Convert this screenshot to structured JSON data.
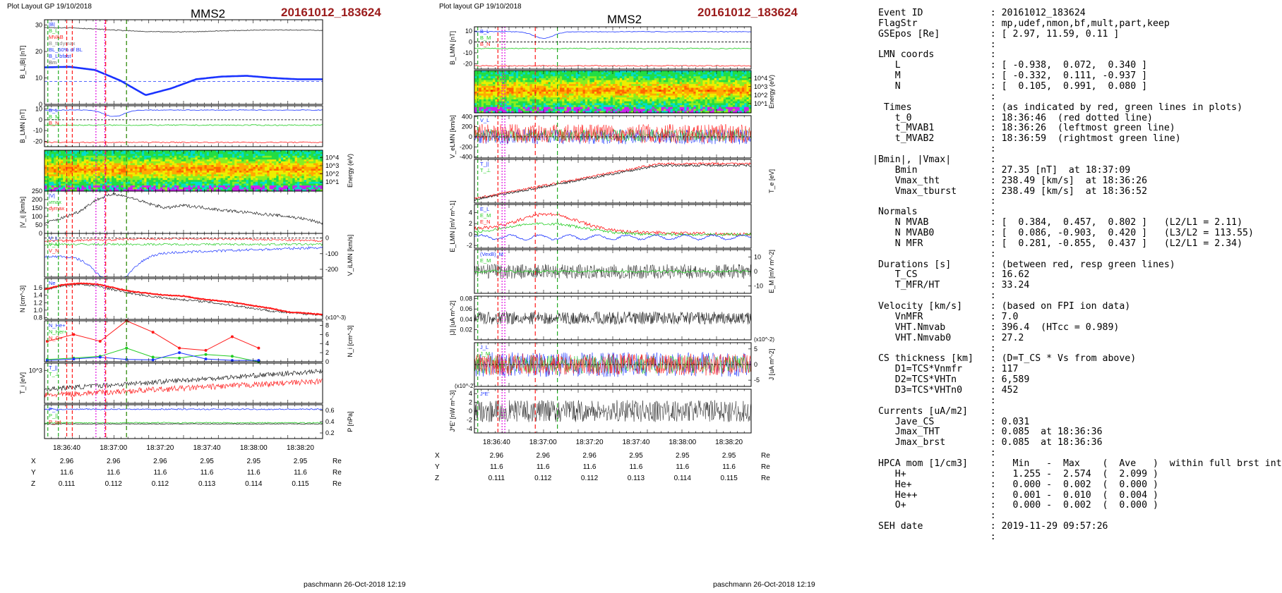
{
  "left": {
    "header": "Plot Layout GP 19/10/2018",
    "title": "MMS2",
    "event": "20161012_183624",
    "footer": "paschmann 26-Oct-2018 12:19",
    "panels": {
      "B": {
        "ylabel": "B_L,|B| [nT]",
        "ticks": [
          "30",
          "20",
          "10",
          "0"
        ],
        "legend": [
          "|B|",
          "B_L",
          "MVAB",
          "B_tt.dymax",
          "BL_50% of BL",
          "B_L bfast",
          "Bm"
        ],
        "series": {
          "Bmag": [
            29,
            29,
            28.5,
            28,
            27.5,
            27.4,
            27.5,
            27.8,
            28,
            28.2,
            28.1,
            28
          ],
          "BL": [
            14,
            14.2,
            13,
            9,
            3.5,
            6,
            9.5,
            10.5,
            10.8,
            10,
            9.5,
            9.5
          ]
        },
        "ylim": [
          0,
          32
        ]
      },
      "BLMN": {
        "ylabel": "B_LMN [nT]",
        "ticks": [
          "10",
          "0",
          "-10",
          "-20"
        ],
        "legend": [
          "B_L",
          "B_M",
          "B_N"
        ],
        "ylim": [
          -25,
          13
        ]
      },
      "spec": {
        "ylabel": "Energy (eV)",
        "ticks": [
          "10^4",
          "10^3",
          "10^2",
          "10^1"
        ]
      },
      "Vi": {
        "ylabel": "|V_i| [km/s]",
        "ticks": [
          "250",
          "200",
          "150",
          "100",
          "50",
          "0"
        ],
        "legend": [
          "|V|",
          "vmax",
          "dymax"
        ],
        "series": [
          60,
          90,
          130,
          200,
          235,
          210,
          175,
          150,
          165,
          155,
          140,
          130,
          120,
          110,
          100,
          85,
          60
        ],
        "ylim": [
          0,
          250
        ]
      },
      "ViLMN": {
        "ylabel": "V_iLMN [km/s]",
        "ticks": [
          "0",
          "-100",
          "-200"
        ],
        "legend": [
          "V_L",
          "V_M",
          "V_N"
        ],
        "ylim": [
          -250,
          30
        ]
      },
      "N": {
        "ylabel": "N [cm^-3]",
        "ticks": [
          "1.6",
          "1.4",
          "1.2",
          "1.0",
          "0.8"
        ],
        "legend": [
          "Ne"
        ],
        "series": {
          "Ne": [
            1.55,
            1.68,
            1.72,
            1.7,
            1.6,
            1.5,
            1.45,
            1.4,
            1.38,
            1.3,
            1.25,
            1.2,
            1.12,
            1.05,
            0.95,
            0.92,
            0.88
          ],
          "Ni": [
            1.55,
            1.65,
            1.7,
            1.65,
            1.55,
            1.45,
            1.38,
            1.32,
            1.28,
            1.24,
            1.18,
            1.12,
            1.05,
            0.98,
            0.93,
            0.9,
            0.87
          ]
        },
        "ylim": [
          0.75,
          1.85
        ]
      },
      "Nions": {
        "ylabel": "N_i [cm^-3]",
        "exp": "(x10^-3)",
        "ticks": [
          "8",
          "6",
          "4",
          "2",
          "0"
        ],
        "legend": [
          "N_He+",
          "N_Her+",
          "N_O+"
        ],
        "x": [
          0,
          1,
          2,
          3,
          4,
          5,
          6,
          7,
          8,
          9
        ],
        "He_pp": [
          4.5,
          6,
          4.5,
          9,
          6.5,
          3,
          2.5,
          5.5,
          3,
          0
        ],
        "He_p": [
          0.5,
          0.8,
          1.2,
          3,
          1,
          0.8,
          1.6,
          1.2,
          0,
          0
        ],
        "O_p": [
          0.3,
          0.6,
          1,
          0.5,
          0.4,
          2,
          0.6,
          0.3,
          0.3,
          0
        ],
        "ylim": [
          0,
          9
        ]
      },
      "Ti": {
        "ylabel": "T_i [eV]",
        "ticks": [
          "10^3"
        ],
        "legend": [
          "T_||",
          "T_⊥"
        ]
      },
      "P": {
        "ylabel": "P [nPa]",
        "ticks": [
          "0.6",
          "0.4",
          "0.2"
        ],
        "legend": [
          "P_⊥",
          "P_||",
          "P_tot"
        ],
        "ylim": [
          0.1,
          0.7
        ]
      }
    },
    "xticks": [
      "18:36:40",
      "18:37:00",
      "18:37:20",
      "18:37:40",
      "18:38:00",
      "18:38:20"
    ],
    "positions": {
      "X": [
        "2.96",
        "2.96",
        "2.96",
        "2.95",
        "2.95",
        "2.95"
      ],
      "Y": [
        "11.6",
        "11.6",
        "11.6",
        "11.6",
        "11.6",
        "11.6"
      ],
      "Z": [
        "0.111",
        "0.112",
        "0.112",
        "0.113",
        "0.114",
        "0.115"
      ],
      "unit": "Re"
    }
  },
  "middle": {
    "header": "Plot layout GP 19/10/2018",
    "title": "MMS2",
    "event": "20161012_183624",
    "footer": "paschmann 26-Oct-2018 12:19",
    "panels": {
      "BLMN": {
        "ylabel": "B_LMN [nT]",
        "ticks": [
          "10",
          "0",
          "-10",
          "-20"
        ],
        "legend": [
          "B_L",
          "B_M",
          "B_N"
        ],
        "ylim": [
          -25,
          14
        ]
      },
      "spec": {
        "ylabel": "Energy (eV)",
        "ticks": [
          "10^4",
          "10^3",
          "10^2",
          "10^1"
        ]
      },
      "Ve": {
        "ylabel": "V_eLMN [km/s]",
        "ticks": [
          "400",
          "200",
          "0",
          "-200",
          "-400"
        ],
        "legend": [
          "V_L"
        ],
        "ylim": [
          -420,
          420
        ]
      },
      "Te": {
        "ylabel": "T_e [eV]",
        "legend": [
          "T_||",
          "T_⊥"
        ]
      },
      "E": {
        "ylabel": "E_LMN [mV m^-1]",
        "ticks": [
          "4",
          "2",
          "0",
          "-2"
        ],
        "legend": [
          "E_L",
          "E_M",
          "E_N"
        ],
        "ylim": [
          -2.5,
          5.5
        ]
      },
      "EM": {
        "ylabel": "E_M [mV m^-2]",
        "ticks": [
          "10",
          "0",
          "-10"
        ],
        "legend": [
          "(VexB)_M",
          "E_M"
        ],
        "ylim": [
          -15,
          15
        ]
      },
      "J": {
        "ylabel": "|J| [uA m^-2]",
        "ticks": [
          "0.08",
          "0.06",
          "0.04",
          "0.02"
        ],
        "ylim": [
          0,
          0.085
        ]
      },
      "JLMN": {
        "ylabel": "J [uA m^-2]",
        "exp": "(x10^-2)",
        "ticks": [
          "5",
          "0",
          "-5"
        ],
        "legend": [
          "J_L",
          "J_M",
          "J_N"
        ],
        "ylim": [
          -7,
          7
        ]
      },
      "JE": {
        "ylabel": "J*E' [nW m^-3]",
        "exp": "(x10^-2)",
        "ticks": [
          "4",
          "2",
          "0",
          "-2",
          "-4"
        ],
        "legend": [
          "J*E'"
        ],
        "ylim": [
          -5,
          5
        ]
      }
    },
    "xticks": [
      "18:36:40",
      "18:37:00",
      "18:37:20",
      "18:37:40",
      "18:38:00",
      "18:38:20"
    ],
    "positions": {
      "X": [
        "2.96",
        "2.96",
        "2.96",
        "2.95",
        "2.95",
        "2.95"
      ],
      "Y": [
        "11.6",
        "11.6",
        "11.6",
        "11.6",
        "11.6",
        "11.6"
      ],
      "Z": [
        "0.111",
        "0.112",
        "0.112",
        "0.113",
        "0.114",
        "0.115"
      ],
      "unit": "Re"
    }
  },
  "info_lines": [
    " Event ID            : 20161012_183624",
    " FlagStr             : mp,udef,nmon,bf,mult,part,keep",
    " GSEpos [Re]         : [ 2.97, 11.59, 0.11 ]",
    "                     :",
    " LMN coords          :",
    "    L                : [ -0.938,  0.072,  0.340 ]",
    "    M                : [ -0.332,  0.111, -0.937 ]",
    "    N                : [  0.105,  0.991,  0.080 ]",
    "                     :",
    "  Times              : (as indicated by red, green lines in plots)",
    "    t_0              : 18:36:46  (red dotted line)",
    "    t_MVAB1          : 18:36:26  (leftmost green line)",
    "    t_MVAB2          : 18:36:59  (rightmost green line)",
    "                     :",
    "|Bmin|, |Vmax|       :",
    "    Bmin             : 27.35 [nT]  at 18:37:09",
    "    Vmax_tht         : 238.49 [km/s]  at 18:36:26",
    "    Vmax_tburst      : 238.49 [km/s]  at 18:36:52",
    "                     :",
    " Normals             :",
    "    N MVAB           : [  0.384,  0.457,  0.802 ]   (L2/L1 = 2.11)",
    "    N MVAB0          : [  0.086, -0.903,  0.420 ]   (L3/L2 = 113.55)",
    "    N MFR            : [  0.281, -0.855,  0.437 ]   (L2/L1 = 2.34)",
    "                     :",
    " Durations [s]       : (between red, resp green lines)",
    "    T_CS             : 16.62",
    "    T_MFR/HT         : 33.24",
    "                     :",
    " Velocity [km/s]     : (based on FPI ion data)",
    "    VnMFR            : 7.0",
    "    VHT.Nmvab        : 396.4  (HTcc = 0.989)",
    "    VHT.Nmvab0       : 27.2",
    "                     :",
    " CS thickness [km]   : (D=T_CS * Vs from above)",
    "    D1=TCS*Vnmfr     : 117",
    "    D2=TCS*VHTn      : 6,589",
    "    D3=TCS*VHTn0     : 452",
    "                     :",
    " Currents [uA/m2]    :",
    "    Jave_CS          : 0.031",
    "    Jmax_THT         : 0.085  at 18:36:36",
    "    Jmax_brst        : 0.085  at 18:36:36",
    "                     :",
    " HPCA mom [1/cm3]    :   Min   -  Max    (  Ave   )  within full brst int",
    "    H+               :   1.255 -  2.574  (  2.099 )",
    "    He+              :   0.000 -  0.002  (  0.000 )",
    "    He++             :   0.001 -  0.010  (  0.004 )",
    "    O+               :   0.000 -  0.002  (  0.000 )",
    "                     :",
    " SEH date            : 2019-11-29 09:57:26",
    "                     :"
  ],
  "colors": {
    "event": "#9b1b1b",
    "L": "#1a33ff",
    "M": "#22cc22",
    "N": "#ff1a1a",
    "red": "#ff1a1a",
    "green": "#22cc22",
    "magenta": "#e010e0"
  },
  "chart_data": [
    {
      "type": "line",
      "title": "MMS2",
      "panel": "B_L,|B|",
      "ylabel": "B_L,|B| [nT]",
      "ylim": [
        0,
        32
      ],
      "series": [
        {
          "name": "|B|",
          "values": [
            29,
            29,
            28.5,
            28,
            27.5,
            27.4,
            27.5,
            27.8,
            28,
            28.2,
            28.1,
            28
          ]
        },
        {
          "name": "B_L",
          "values": [
            14,
            14.2,
            13,
            9,
            3.5,
            6,
            9.5,
            10.5,
            10.8,
            10,
            9.5,
            9.5
          ]
        }
      ]
    },
    {
      "type": "line",
      "title": "MMS2",
      "panel": "|V_i|",
      "ylabel": "|V_i| [km/s]",
      "ylim": [
        0,
        250
      ],
      "values": [
        60,
        90,
        130,
        200,
        235,
        210,
        175,
        150,
        165,
        155,
        140,
        130,
        120,
        110,
        100,
        85,
        60
      ]
    },
    {
      "type": "line",
      "title": "MMS2",
      "panel": "N_i",
      "ylabel": "N_i [cm^-3]",
      "ylim": [
        0,
        9
      ],
      "series": [
        {
          "name": "N_He+",
          "values": [
            0.5,
            0.8,
            1.2,
            3,
            1,
            0.8,
            1.6,
            1.2,
            0,
            0
          ]
        },
        {
          "name": "N_Her+",
          "values": [
            4.5,
            6,
            4.5,
            9,
            6.5,
            3,
            2.5,
            5.5,
            3,
            0
          ]
        }
      ]
    }
  ]
}
